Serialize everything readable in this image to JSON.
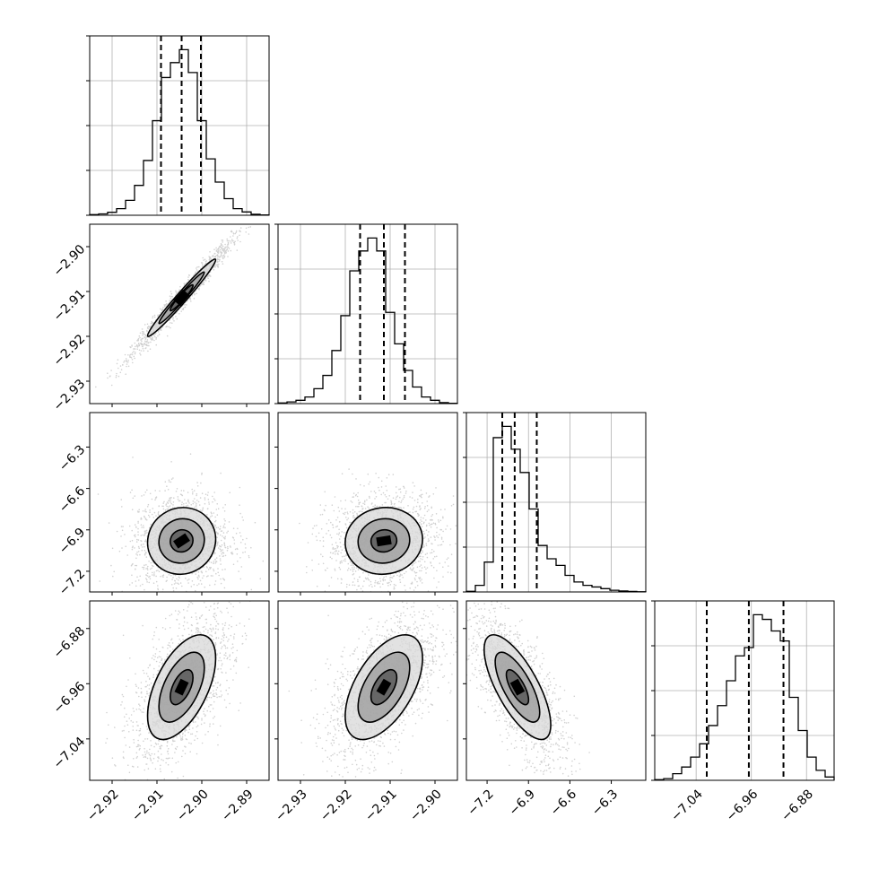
{
  "chart_data": {
    "type": "corner",
    "grid": true,
    "parameters": [
      {
        "range": [
          -2.925,
          -2.885
        ],
        "ticks": [
          -2.92,
          -2.91,
          -2.9,
          -2.89
        ],
        "tick_labels": [
          "−2.92",
          "−2.91",
          "−2.90",
          "−2.89"
        ],
        "quantiles": [
          -2.9091,
          -2.9045,
          -2.9002
        ],
        "hist": [
          0.004,
          0.008,
          0.018,
          0.04,
          0.09,
          0.18,
          0.33,
          0.57,
          0.83,
          0.92,
          0.998,
          0.86,
          0.57,
          0.34,
          0.2,
          0.1,
          0.04,
          0.02,
          0.006,
          0.002
        ],
        "mean": -2.9045,
        "sd": 0.0044
      },
      {
        "range": [
          -2.935,
          -2.895
        ],
        "ticks": [
          -2.93,
          -2.92,
          -2.91,
          -2.9
        ],
        "tick_labels": [
          "−2.93",
          "−2.92",
          "−2.91",
          "−2.90"
        ],
        "quantiles": [
          -2.9167,
          -2.9114,
          -2.9067
        ],
        "hist": [
          0.004,
          0.01,
          0.02,
          0.04,
          0.09,
          0.17,
          0.32,
          0.53,
          0.8,
          0.92,
          0.998,
          0.92,
          0.55,
          0.36,
          0.2,
          0.1,
          0.04,
          0.02,
          0.006,
          0.002
        ],
        "mean": -2.9114,
        "sd": 0.005
      },
      {
        "range": [
          -7.35,
          -6.05
        ],
        "ticks": [
          -7.2,
          -6.9,
          -6.6,
          -6.3
        ],
        "tick_labels": [
          "−7.2",
          "−6.9",
          "−6.6",
          "−6.3"
        ],
        "quantiles": [
          -7.09,
          -7.0,
          -6.84
        ],
        "hist": [
          0.004,
          0.04,
          0.18,
          0.93,
          0.998,
          0.86,
          0.72,
          0.5,
          0.28,
          0.2,
          0.16,
          0.1,
          0.06,
          0.04,
          0.03,
          0.02,
          0.01,
          0.006,
          0.003,
          0.001
        ],
        "mean": -6.98,
        "sd": 0.14
      },
      {
        "range": [
          -7.1,
          -6.84
        ],
        "ticks": [
          -7.04,
          -6.96,
          -6.88
        ],
        "tick_labels": [
          "−7.04",
          "−6.96",
          "−6.88"
        ],
        "quantiles": [
          -7.0246,
          -6.9636,
          -6.9134
        ],
        "hist": [
          0.004,
          0.01,
          0.04,
          0.08,
          0.14,
          0.22,
          0.33,
          0.45,
          0.6,
          0.75,
          0.8,
          0.998,
          0.97,
          0.9,
          0.84,
          0.5,
          0.3,
          0.14,
          0.06,
          0.02
        ],
        "mean": -6.965,
        "sd": 0.044
      }
    ],
    "pairs": [
      {
        "row": 1,
        "col": 0,
        "sx": 0.0044,
        "sy": 0.005,
        "rho": 0.98
      },
      {
        "row": 2,
        "col": 0,
        "sx": 0.0044,
        "sy": 0.14,
        "rho": 0.05
      },
      {
        "row": 2,
        "col": 1,
        "sx": 0.005,
        "sy": 0.14,
        "rho": 0.05
      },
      {
        "row": 3,
        "col": 0,
        "sx": 0.0044,
        "sy": 0.044,
        "rho": 0.55
      },
      {
        "row": 3,
        "col": 1,
        "sx": 0.005,
        "sy": 0.044,
        "rho": 0.55
      },
      {
        "row": 3,
        "col": 2,
        "sx": 0.14,
        "sy": 0.044,
        "rho": -0.72
      }
    ],
    "contour_levels": [
      0.5,
      1.0,
      1.5
    ]
  }
}
